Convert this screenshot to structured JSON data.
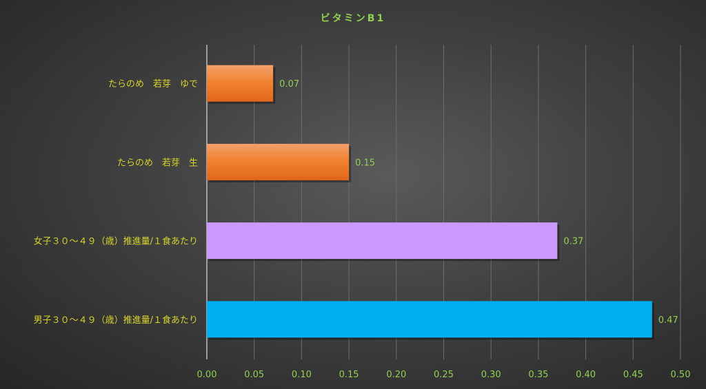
{
  "chart_data": {
    "type": "bar",
    "orientation": "horizontal",
    "title": "ビタミンB1",
    "categories": [
      "たらのめ　若芽　ゆで",
      "たらのめ　若芽　生",
      "女子３０～４９（歳）推進量/１食あたり",
      "男子３０～４９（歳）推進量/１食あたり"
    ],
    "values": [
      0.07,
      0.15,
      0.37,
      0.47
    ],
    "data_labels": [
      "0.07",
      "0.15",
      "0.37",
      "0.47"
    ],
    "bar_colors": [
      "#ed7d31",
      "#ed7d31",
      "#cc99ff",
      "#00b0f0"
    ],
    "xlim": [
      0,
      0.5
    ],
    "xticks": [
      "0.00",
      "0.05",
      "0.10",
      "0.15",
      "0.20",
      "0.25",
      "0.30",
      "0.35",
      "0.40",
      "0.45",
      "0.50"
    ],
    "grid": true,
    "legend": "none",
    "colors": {
      "title": "#92d050",
      "category_labels": "#d4d42a",
      "tick_labels": "#92d050",
      "data_labels": "#92d050",
      "grid": "#6e6e6e"
    }
  }
}
